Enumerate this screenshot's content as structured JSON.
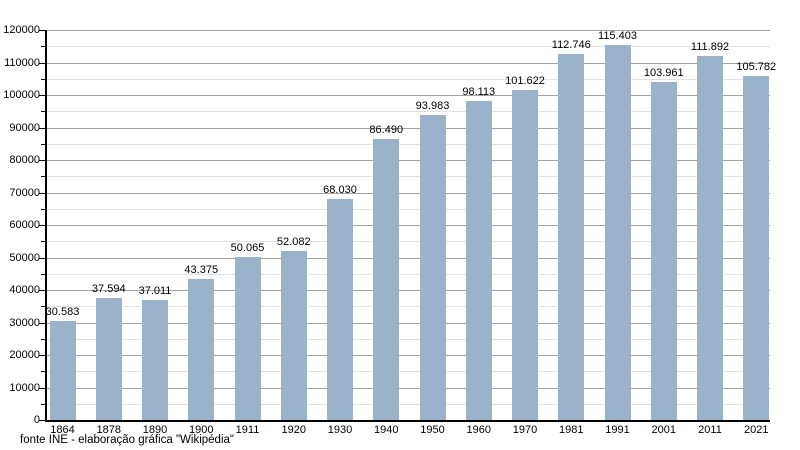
{
  "chart_data": {
    "type": "bar",
    "title": "",
    "xlabel": "",
    "ylabel": "",
    "categories": [
      "1864",
      "1878",
      "1890",
      "1900",
      "1911",
      "1920",
      "1930",
      "1940",
      "1950",
      "1960",
      "1970",
      "1981",
      "1991",
      "2001",
      "2011",
      "2021"
    ],
    "values": [
      30583,
      37594,
      37011,
      43375,
      50065,
      52082,
      68030,
      86490,
      93983,
      98113,
      101622,
      112746,
      115403,
      103961,
      111892,
      105782
    ],
    "value_labels": [
      "30.583",
      "37.594",
      "37.011",
      "43.375",
      "50.065",
      "52.082",
      "68.030",
      "86.490",
      "93.983",
      "98.113",
      "101.622",
      "112.746",
      "115.403",
      "103.961",
      "111.892",
      "105.782"
    ],
    "ylim": [
      0,
      120000
    ],
    "y_major_step": 10000,
    "y_minor_step": 5000,
    "y_tick_labels": [
      "0",
      "10000",
      "20000",
      "30000",
      "40000",
      "50000",
      "60000",
      "70000",
      "80000",
      "90000",
      "100000",
      "110000",
      "120000"
    ],
    "grid": true,
    "legend": false,
    "bar_color": "#9ab2ca",
    "major_grid_color": "#a3a3a3",
    "minor_grid_color": "#e2e2e2",
    "axis_color": "#000000"
  },
  "footer": {
    "source_text": "fonte INE - elaboração gráfica \"Wikipédia\""
  }
}
